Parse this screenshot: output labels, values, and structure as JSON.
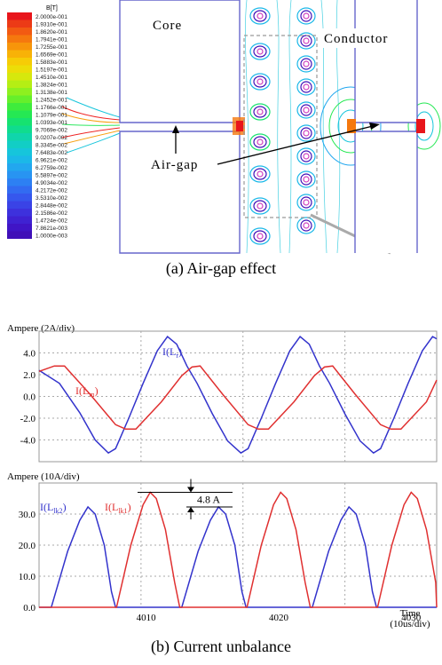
{
  "figure": {
    "caption_a": "(a) Air-gap effect",
    "caption_b": "(b)   Current unbalance",
    "labels": {
      "core": "Core",
      "conductor": "Conductor",
      "airgap": "Air-gap"
    }
  },
  "legend": {
    "title": "B[T]",
    "entries": [
      "2.0000e-001",
      "1.9310e-001",
      "1.8620e-001",
      "1.7941e-001",
      "1.7255e-001",
      "1.6569e-001",
      "1.5883e-001",
      "1.5197e-001",
      "1.4510e-001",
      "1.3824e-001",
      "1.3138e-001",
      "1.2452e-001",
      "1.1766e-001",
      "1.1079e-001",
      "1.0393e-001",
      "9.7069e-002",
      "9.0207e-002",
      "8.3345e-002",
      "7.6483e-002",
      "6.9621e-002",
      "6.2759e-002",
      "5.5897e-002",
      "4.9034e-002",
      "4.2172e-002",
      "3.5310e-002",
      "2.8448e-002",
      "2.1586e-002",
      "1.4724e-002",
      "7.8621e-003",
      "1.0000e-003"
    ],
    "colors": [
      "#e8151b",
      "#ec3a16",
      "#f25a12",
      "#f5780e",
      "#f7950a",
      "#f8b207",
      "#f6cc06",
      "#ecdd08",
      "#d6e80d",
      "#b5ee14",
      "#8ef01f",
      "#66ef2b",
      "#3fec3c",
      "#25e853",
      "#16e270",
      "#10dc8e",
      "#10d5ab",
      "#12cec5",
      "#16c5db",
      "#1bb8e8",
      "#22a7ef",
      "#2894f2",
      "#2d80f3",
      "#326bf1",
      "#3657ed",
      "#3a43e6",
      "#3d31dd",
      "#3f22d2",
      "#4015c6",
      "#4010b8"
    ]
  },
  "chart_data": [
    {
      "type": "line",
      "ylabel": "Ampere (2A/div)",
      "ylim": [
        -6,
        6
      ],
      "yticks": [
        "4.0",
        "2.0",
        "0.0",
        "-2.0",
        "-4.0"
      ],
      "grid": true,
      "series": [
        {
          "name": "I(L_r)",
          "name_main": "I(L",
          "name_sub": "r",
          "name_end": ")",
          "color": "#3333cc",
          "points": [
            [
              0,
              2.4
            ],
            [
              2,
              1.2
            ],
            [
              4,
              -1.5
            ],
            [
              5.5,
              -4.0
            ],
            [
              6.8,
              -5.2
            ],
            [
              7.5,
              -4.8
            ],
            [
              8.8,
              -2.0
            ],
            [
              10.2,
              1.2
            ],
            [
              11.6,
              4.2
            ],
            [
              12.6,
              5.5
            ],
            [
              13.5,
              4.8
            ],
            [
              14.5,
              2.8
            ],
            [
              15.5,
              1.2
            ],
            [
              17,
              -1.6
            ],
            [
              18.5,
              -4.1
            ],
            [
              19.8,
              -5.2
            ],
            [
              20.5,
              -4.8
            ],
            [
              21.8,
              -2.0
            ],
            [
              23.2,
              1.2
            ],
            [
              24.6,
              4.2
            ],
            [
              25.6,
              5.5
            ],
            [
              26.5,
              4.8
            ],
            [
              27.5,
              2.8
            ],
            [
              28.5,
              1.2
            ],
            [
              30,
              -1.6
            ],
            [
              31.5,
              -4.1
            ],
            [
              32.8,
              -5.2
            ],
            [
              33.5,
              -4.8
            ],
            [
              34.8,
              -2.0
            ],
            [
              36.2,
              1.2
            ],
            [
              37.6,
              4.2
            ],
            [
              38.6,
              5.5
            ],
            [
              39,
              5.3
            ]
          ]
        },
        {
          "name": "I(L_m)",
          "name_main": "I(L",
          "name_sub": "m",
          "name_end": ")",
          "color": "#e03030",
          "points": [
            [
              0,
              2.3
            ],
            [
              1.5,
              2.8
            ],
            [
              2.5,
              2.8
            ],
            [
              5,
              0.2
            ],
            [
              7.5,
              -2.6
            ],
            [
              8.5,
              -3.0
            ],
            [
              9.5,
              -3.0
            ],
            [
              12,
              -0.5
            ],
            [
              14,
              1.9
            ],
            [
              15,
              2.7
            ],
            [
              15.8,
              2.8
            ],
            [
              18,
              0.2
            ],
            [
              20.5,
              -2.6
            ],
            [
              21.5,
              -3.0
            ],
            [
              22.5,
              -3.0
            ],
            [
              25,
              -0.5
            ],
            [
              27,
              1.9
            ],
            [
              28,
              2.7
            ],
            [
              28.8,
              2.8
            ],
            [
              31,
              0.2
            ],
            [
              33.5,
              -2.6
            ],
            [
              34.5,
              -3.0
            ],
            [
              35.5,
              -3.0
            ],
            [
              38,
              -0.5
            ],
            [
              39,
              1.5
            ]
          ]
        }
      ]
    },
    {
      "type": "line",
      "ylabel": "Ampere (10A/div)",
      "xlabel": "Time",
      "xunit": "(10us/div)",
      "ylim": [
        0,
        40
      ],
      "yticks": [
        "30.0",
        "20.0",
        "10.0",
        "0.0"
      ],
      "xticks": [
        "4010",
        "4020",
        "4030"
      ],
      "grid": true,
      "annotation": "4.8 A",
      "series": [
        {
          "name": "I(L_lk2)",
          "name_main": "I(L",
          "name_sub": "lk2",
          "name_end": ")",
          "color": "#3333cc",
          "points": [
            [
              0,
              0
            ],
            [
              1.2,
              0
            ],
            [
              2.8,
              18
            ],
            [
              4.0,
              28
            ],
            [
              4.8,
              32.3
            ],
            [
              5.5,
              30
            ],
            [
              6.4,
              20
            ],
            [
              7.1,
              5
            ],
            [
              7.5,
              0
            ],
            [
              14.0,
              0
            ],
            [
              15.6,
              18
            ],
            [
              16.8,
              28
            ],
            [
              17.6,
              32.3
            ],
            [
              18.3,
              30
            ],
            [
              19.2,
              20
            ],
            [
              19.9,
              5
            ],
            [
              20.3,
              0
            ],
            [
              26.8,
              0
            ],
            [
              28.4,
              18
            ],
            [
              29.6,
              28
            ],
            [
              30.4,
              32.3
            ],
            [
              31.1,
              30
            ],
            [
              32.0,
              20
            ],
            [
              32.7,
              5
            ],
            [
              33.1,
              0
            ],
            [
              39,
              0
            ]
          ]
        },
        {
          "name": "I(L_lk1)",
          "name_main": "I(L",
          "name_sub": "lk1",
          "name_end": ")",
          "color": "#e03030",
          "points": [
            [
              0,
              0
            ],
            [
              7.6,
              0
            ],
            [
              9.0,
              20
            ],
            [
              10.2,
              33
            ],
            [
              10.9,
              37
            ],
            [
              11.5,
              35
            ],
            [
              12.4,
              25
            ],
            [
              13.3,
              8
            ],
            [
              13.8,
              0
            ],
            [
              20.4,
              0
            ],
            [
              21.8,
              20
            ],
            [
              23.0,
              33
            ],
            [
              23.7,
              37
            ],
            [
              24.3,
              35
            ],
            [
              25.2,
              25
            ],
            [
              26.1,
              8
            ],
            [
              26.6,
              0
            ],
            [
              33.2,
              0
            ],
            [
              34.6,
              20
            ],
            [
              35.8,
              33
            ],
            [
              36.5,
              37
            ],
            [
              37.1,
              35
            ],
            [
              38.0,
              25
            ],
            [
              38.9,
              8
            ],
            [
              39,
              0
            ]
          ]
        }
      ]
    }
  ]
}
